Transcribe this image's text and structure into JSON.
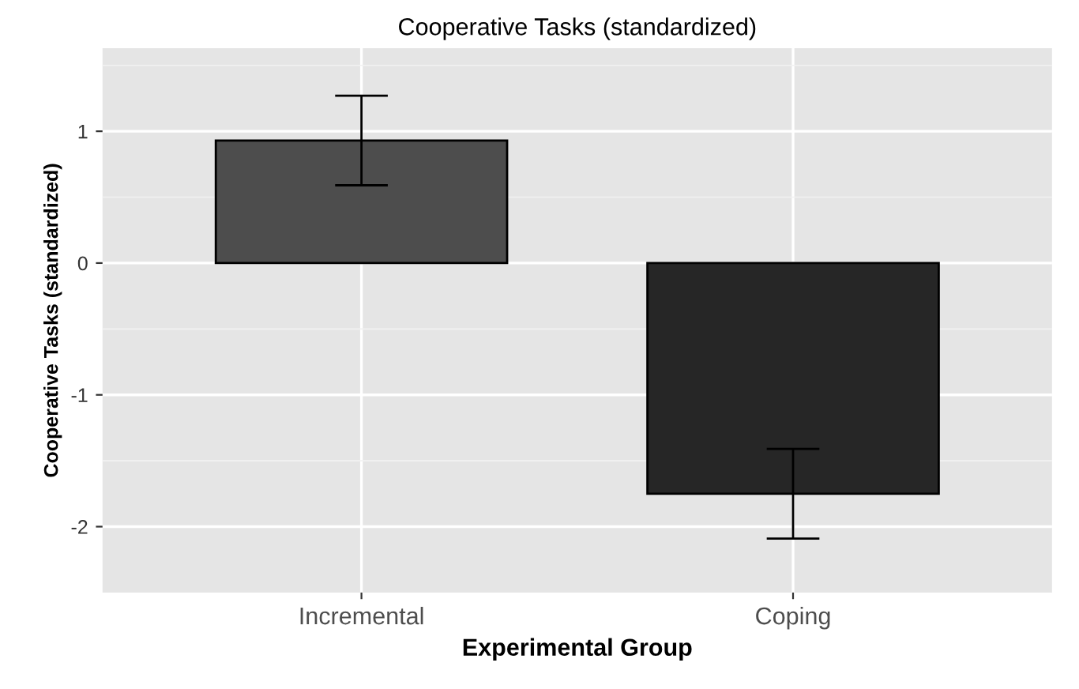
{
  "chart_data": {
    "type": "bar",
    "title": "Cooperative Tasks (standardized)",
    "xlabel": "Experimental Group",
    "ylabel": "Cooperative Tasks (standardized)",
    "categories": [
      "Incremental",
      "Coping"
    ],
    "values": [
      0.93,
      -1.75
    ],
    "errors": [
      0.34,
      0.34
    ],
    "colors": [
      "#4d4d4d",
      "#262626"
    ],
    "ylim": [
      -2.5,
      1.63
    ],
    "yticks": [
      -2,
      -1,
      0,
      1
    ],
    "grid": true
  }
}
